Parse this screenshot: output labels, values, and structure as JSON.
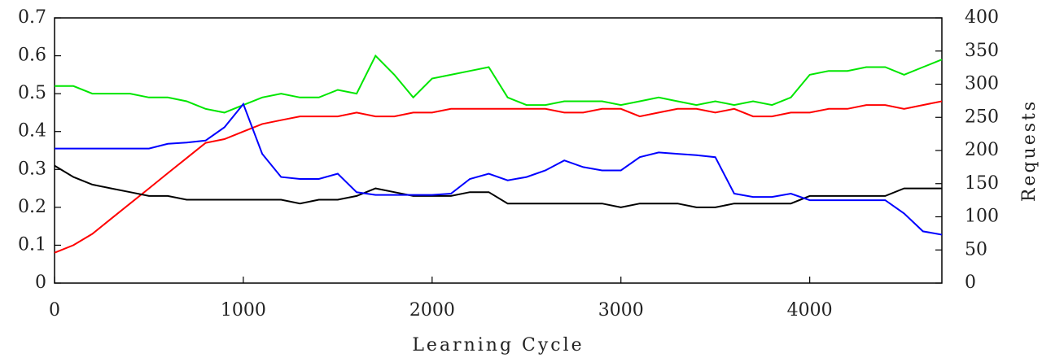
{
  "chart_data": {
    "type": "line",
    "x_label": "Learning Cycle",
    "y2_label": "Requests",
    "x": [
      0,
      100,
      200,
      300,
      400,
      500,
      600,
      700,
      800,
      900,
      1000,
      1100,
      1200,
      1300,
      1400,
      1500,
      1600,
      1700,
      1800,
      1900,
      2000,
      2100,
      2200,
      2300,
      2400,
      2500,
      2600,
      2700,
      2800,
      2900,
      3000,
      3100,
      3200,
      3300,
      3400,
      3500,
      3600,
      3700,
      3800,
      3900,
      4000,
      4100,
      4200,
      4300,
      4400,
      4500,
      4600,
      4700
    ],
    "xlim": [
      0,
      4700
    ],
    "xticks": [
      0,
      1000,
      2000,
      3000,
      4000
    ],
    "ylim": [
      0,
      0.7
    ],
    "yticks": [
      0,
      0.1,
      0.2,
      0.3,
      0.4,
      0.5,
      0.6,
      0.7
    ],
    "y2lim": [
      0,
      400
    ],
    "y2ticks": [
      0,
      50,
      100,
      150,
      200,
      250,
      300,
      350,
      400
    ],
    "series": [
      {
        "color": "#00e600",
        "values": [
          0.52,
          0.52,
          0.5,
          0.5,
          0.5,
          0.49,
          0.49,
          0.48,
          0.46,
          0.45,
          0.47,
          0.49,
          0.5,
          0.49,
          0.49,
          0.51,
          0.5,
          0.6,
          0.55,
          0.49,
          0.54,
          0.55,
          0.56,
          0.57,
          0.49,
          0.47,
          0.47,
          0.48,
          0.48,
          0.48,
          0.47,
          0.48,
          0.49,
          0.48,
          0.47,
          0.48,
          0.47,
          0.48,
          0.47,
          0.49,
          0.55,
          0.56,
          0.56,
          0.57,
          0.57,
          0.55,
          0.57,
          0.59
        ]
      },
      {
        "color": "#ff0000",
        "values": [
          0.08,
          0.1,
          0.13,
          0.17,
          0.21,
          0.25,
          0.29,
          0.33,
          0.37,
          0.38,
          0.4,
          0.42,
          0.43,
          0.44,
          0.44,
          0.44,
          0.45,
          0.44,
          0.44,
          0.45,
          0.45,
          0.46,
          0.46,
          0.46,
          0.46,
          0.46,
          0.46,
          0.45,
          0.45,
          0.46,
          0.46,
          0.44,
          0.45,
          0.46,
          0.46,
          0.45,
          0.46,
          0.44,
          0.44,
          0.45,
          0.45,
          0.46,
          0.46,
          0.47,
          0.47,
          0.46,
          0.47,
          0.48
        ]
      },
      {
        "color": "#000000",
        "values": [
          0.31,
          0.28,
          0.26,
          0.25,
          0.24,
          0.23,
          0.23,
          0.22,
          0.22,
          0.22,
          0.22,
          0.22,
          0.22,
          0.21,
          0.22,
          0.22,
          0.23,
          0.25,
          0.24,
          0.23,
          0.23,
          0.23,
          0.24,
          0.24,
          0.21,
          0.21,
          0.21,
          0.21,
          0.21,
          0.21,
          0.2,
          0.21,
          0.21,
          0.21,
          0.2,
          0.2,
          0.21,
          0.21,
          0.21,
          0.21,
          0.23,
          0.23,
          0.23,
          0.23,
          0.23,
          0.25,
          0.25,
          0.25
        ]
      },
      {
        "color": "#0000ff",
        "axis": "y2",
        "values": [
          203,
          203,
          203,
          203,
          203,
          203,
          210,
          212,
          215,
          235,
          270,
          195,
          160,
          157,
          157,
          165,
          137,
          133,
          133,
          133,
          133,
          135,
          157,
          165,
          155,
          160,
          170,
          185,
          175,
          170,
          170,
          190,
          197,
          195,
          193,
          190,
          135,
          130,
          130,
          135,
          125,
          125,
          125,
          125,
          125,
          105,
          78,
          73
        ]
      }
    ]
  }
}
